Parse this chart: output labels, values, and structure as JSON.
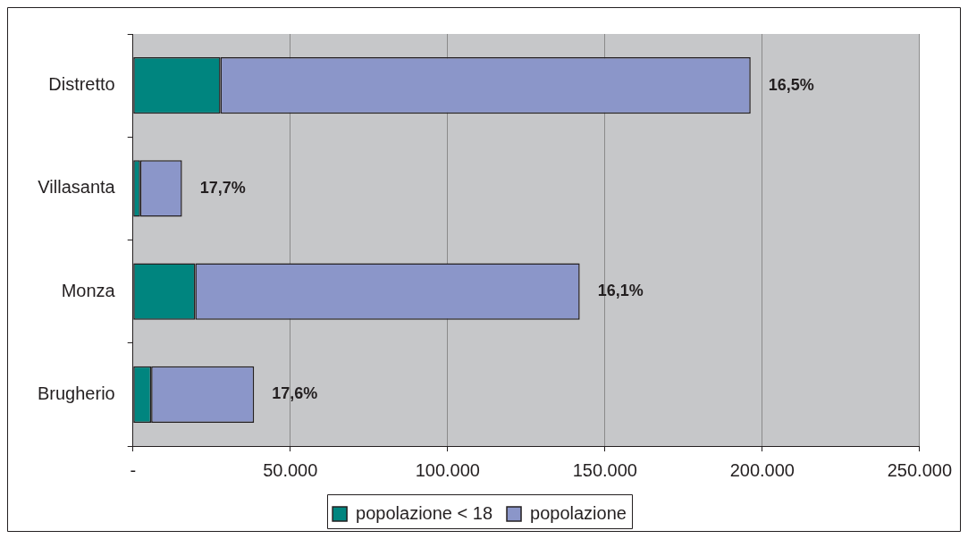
{
  "chart_data": {
    "type": "bar",
    "orientation": "horizontal",
    "stacked": true,
    "categories": [
      "Distretto",
      "Villasanta",
      "Monza",
      "Brugherio"
    ],
    "series": [
      {
        "name": "popolazione < 18",
        "color": "#00857f",
        "values": [
          27800,
          2300,
          19800,
          5800
        ]
      },
      {
        "name": "popolazione",
        "color": "#8b96c9",
        "values": [
          168500,
          13300,
          122200,
          32700
        ]
      }
    ],
    "xlim": [
      0,
      250000
    ],
    "xticks": [
      {
        "value": 0,
        "label": "-"
      },
      {
        "value": 50000,
        "label": "50.000"
      },
      {
        "value": 100000,
        "label": "100.000"
      },
      {
        "value": 150000,
        "label": "150.000"
      },
      {
        "value": 200000,
        "label": "200.000"
      },
      {
        "value": 250000,
        "label": "250.000"
      }
    ],
    "annotations": [
      {
        "text": "16,5%",
        "x": 196300,
        "y": "Distretto"
      },
      {
        "text": "17,7%",
        "x": 15600,
        "y": "Villasanta"
      },
      {
        "text": "16,1%",
        "x": 142000,
        "y": "Monza"
      },
      {
        "text": "17,6%",
        "x": 38500,
        "y": "Brugherio"
      }
    ],
    "grid": "x",
    "legend": "bottom"
  }
}
